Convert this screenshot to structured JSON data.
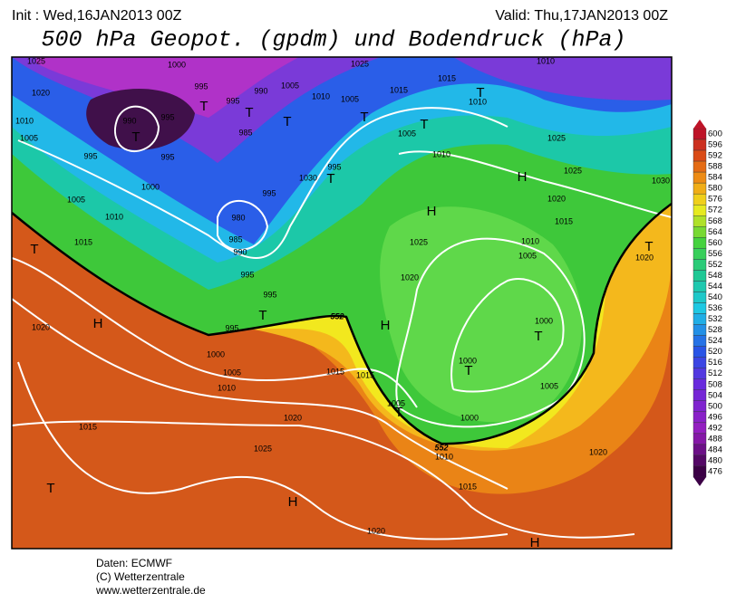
{
  "header": {
    "init": "Init : Wed,16JAN2013 00Z",
    "valid": "Valid: Thu,17JAN2013 00Z",
    "title": "500 hPa Geopot. (gpdm) und Bodendruck (hPa)"
  },
  "legend": {
    "levels": [
      600,
      596,
      592,
      588,
      584,
      580,
      576,
      572,
      568,
      564,
      560,
      556,
      552,
      548,
      544,
      540,
      536,
      532,
      528,
      524,
      520,
      516,
      512,
      508,
      504,
      500,
      496,
      492,
      488,
      484,
      480,
      476
    ]
  },
  "map": {
    "pressure_labels": [
      "1025",
      "1000",
      "995",
      "995",
      "990",
      "1005",
      "1025",
      "1010",
      "1020",
      "1010",
      "1005",
      "1015",
      "1015",
      "1010",
      "1010",
      "990",
      "995",
      "1005",
      "985",
      "1005",
      "1025",
      "995",
      "995",
      "1010",
      "995",
      "1030",
      "1025",
      "1030",
      "1000",
      "995",
      "1005",
      "1010",
      "980",
      "1020",
      "1015",
      "1015",
      "985",
      "990",
      "1025",
      "1010",
      "1005",
      "1020",
      "1020",
      "995",
      "995",
      "995",
      "1020",
      "1000",
      "1000",
      "1005",
      "1010",
      "1015",
      "1015",
      "1000",
      "1005",
      "1005",
      "1000",
      "1020",
      "1015",
      "1025",
      "1010",
      "1020",
      "1015",
      "1020"
    ],
    "centers": [
      "T",
      "T",
      "T",
      "T",
      "T",
      "T",
      "T",
      "T",
      "H",
      "H",
      "T",
      "T",
      "H",
      "H",
      "T",
      "T",
      "T",
      "T",
      "T",
      "H",
      "H"
    ],
    "contour_labels": [
      "552",
      "552"
    ]
  },
  "footer": {
    "lines": [
      "Daten: ECMWF",
      "(C) Wetterzentrale",
      "www.wetterzentrale.de"
    ]
  }
}
